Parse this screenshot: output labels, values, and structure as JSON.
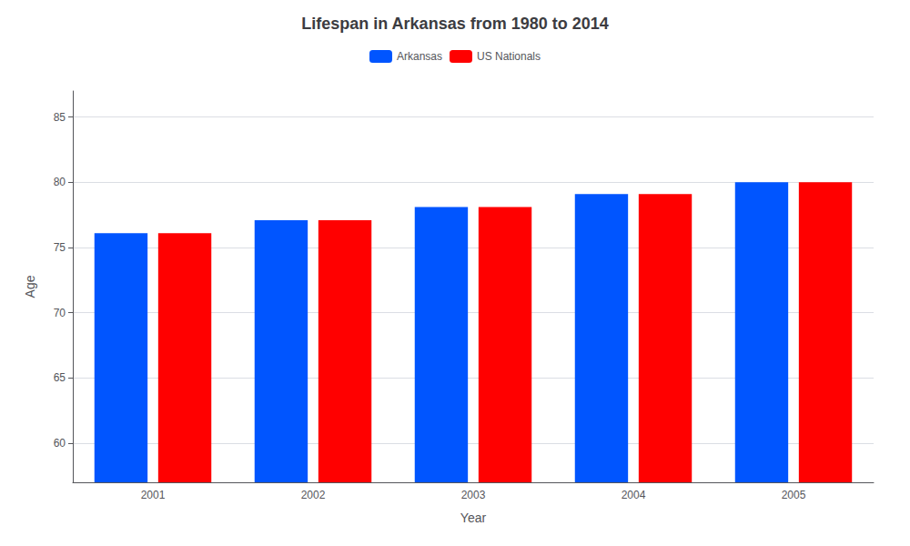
{
  "chart_data": {
    "type": "bar",
    "title": "Lifespan in Arkansas from 1980 to 2014",
    "xlabel": "Year",
    "ylabel": "Age",
    "categories": [
      2001,
      2002,
      2003,
      2004,
      2005
    ],
    "series": [
      {
        "name": "Arkansas",
        "color": "#0055ff",
        "values": [
          76.1,
          77.1,
          78.1,
          79.1,
          80.0
        ]
      },
      {
        "name": "US Nationals",
        "color": "#ff0000",
        "values": [
          76.1,
          77.1,
          78.1,
          79.1,
          80.0
        ]
      }
    ],
    "ylim": [
      57,
      87
    ],
    "yticks": [
      60,
      65,
      70,
      75,
      80,
      85
    ],
    "grid": true,
    "legend": "top"
  }
}
